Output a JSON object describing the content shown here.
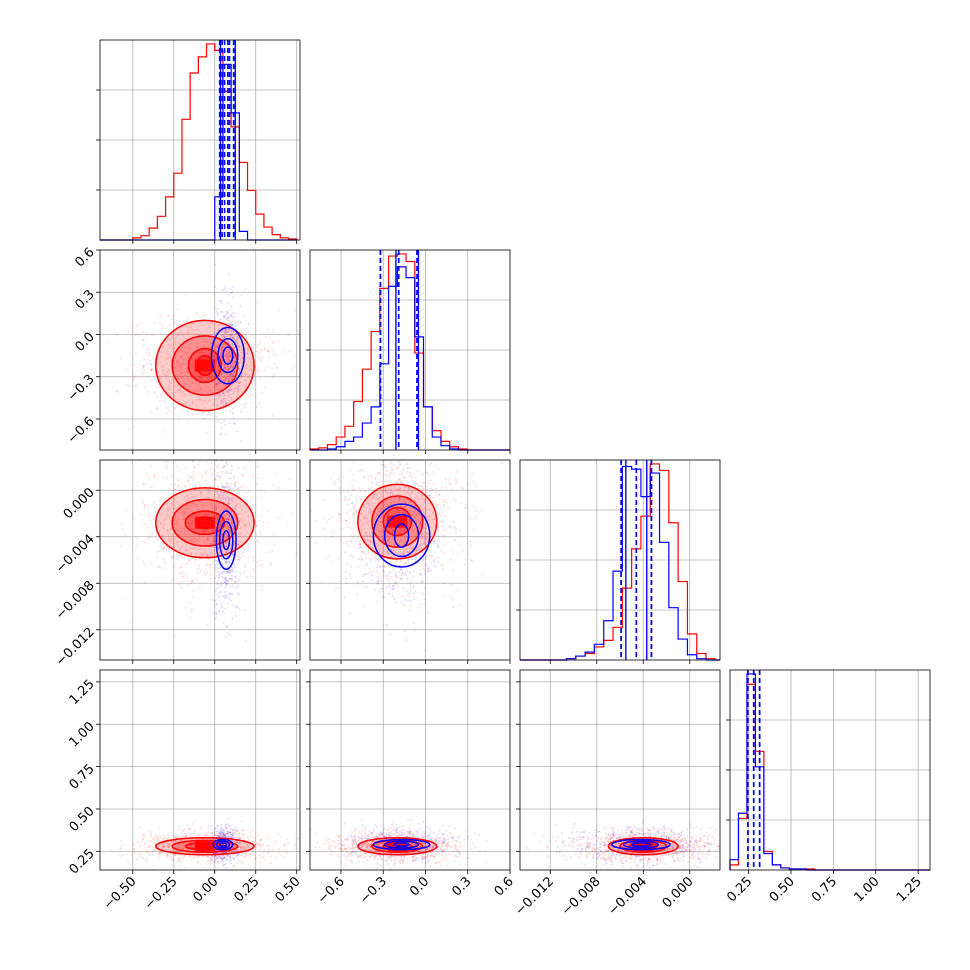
{
  "chart_data": {
    "type": "corner",
    "series": [
      {
        "name": "",
        "color": "#ff0000"
      },
      {
        "name": "",
        "color": "#0000ff"
      }
    ],
    "parameters": [
      {
        "range": [
          -0.7,
          0.52
        ],
        "ticks": [
          "-0.50",
          "-0.25",
          "0.00",
          "0.25",
          "0.50"
        ],
        "tick_values": [
          -0.5,
          -0.25,
          0,
          0.25,
          0.5
        ]
      },
      {
        "range": [
          -0.82,
          0.6
        ],
        "ticks": [
          "-0.6",
          "-0.3",
          "0.0",
          "0.3",
          "0.6"
        ],
        "tick_values": [
          -0.6,
          -0.3,
          0,
          0.3,
          0.6
        ]
      },
      {
        "range": [
          -0.0146,
          0.0026
        ],
        "ticks": [
          "-0.012",
          "-0.008",
          "-0.004",
          "0.000"
        ],
        "tick_values": [
          -0.012,
          -0.008,
          -0.004,
          0
        ]
      },
      {
        "range": [
          0.14,
          1.32
        ],
        "ticks": [
          "0.25",
          "0.50",
          "0.75",
          "1.00",
          "1.25"
        ],
        "tick_values": [
          0.25,
          0.5,
          0.75,
          1.0,
          1.25
        ]
      }
    ],
    "histograms": [
      {
        "bins": [
          -0.7,
          -0.65,
          -0.6,
          -0.55,
          -0.5,
          -0.45,
          -0.4,
          -0.35,
          -0.3,
          -0.25,
          -0.2,
          -0.15,
          -0.1,
          -0.05,
          0.0,
          0.05,
          0.1,
          0.15,
          0.2,
          0.25,
          0.3,
          0.35,
          0.4,
          0.45,
          0.5
        ],
        "series": [
          [
            0,
            0,
            0,
            0,
            2,
            4,
            11,
            22,
            40,
            62,
            112,
            155,
            170,
            182,
            176,
            138,
            105,
            72,
            46,
            24,
            12,
            5,
            2,
            1
          ],
          [
            0,
            0,
            0,
            0,
            0,
            0,
            0,
            0,
            0,
            0,
            0,
            0,
            0,
            0,
            40,
            163,
            118,
            8,
            0,
            0,
            0,
            0,
            0,
            0
          ]
        ],
        "quantiles": [
          [
            0.045,
            0.08,
            0.115
          ],
          [
            0.03,
            0.06,
            0.09
          ]
        ]
      },
      {
        "bins": [
          -0.82,
          -0.758,
          -0.696,
          -0.634,
          -0.572,
          -0.51,
          -0.448,
          -0.386,
          -0.324,
          -0.262,
          -0.2,
          -0.138,
          -0.076,
          -0.014,
          0.048,
          0.11,
          0.172,
          0.234,
          0.296,
          0.358,
          0.42,
          0.482,
          0.544,
          0.6
        ],
        "series": [
          [
            1,
            2,
            5,
            12,
            22,
            45,
            75,
            110,
            150,
            180,
            182,
            175,
            90,
            40,
            18,
            8,
            3,
            1,
            0,
            0,
            0,
            0,
            0
          ],
          [
            0,
            0,
            1,
            3,
            8,
            12,
            25,
            40,
            80,
            152,
            170,
            160,
            105,
            40,
            12,
            4,
            1,
            0,
            0,
            0,
            0,
            0,
            0
          ]
        ],
        "quantiles": [
          [
            -0.32,
            -0.19,
            -0.06
          ],
          [
            -0.32,
            -0.19,
            -0.06
          ]
        ]
      },
      {
        "bins": [
          -0.0146,
          -0.0138,
          -0.013,
          -0.0122,
          -0.0114,
          -0.0106,
          -0.0098,
          -0.009,
          -0.0082,
          -0.0074,
          -0.0066,
          -0.0058,
          -0.005,
          -0.0042,
          -0.0034,
          -0.0026,
          -0.0018,
          -0.001,
          -0.0002,
          0.0006,
          0.0014,
          0.0022,
          0.0026
        ],
        "series": [
          [
            0,
            0,
            0,
            0,
            0,
            1,
            3,
            5,
            10,
            15,
            25,
            55,
            85,
            110,
            150,
            145,
            105,
            60,
            20,
            5,
            1,
            0
          ],
          [
            0,
            0,
            0,
            0,
            0,
            1,
            3,
            6,
            12,
            30,
            68,
            148,
            146,
            125,
            143,
            90,
            40,
            16,
            4,
            1,
            0,
            0
          ]
        ],
        "quantiles": [
          [
            -0.0059,
            -0.0046,
            -0.0033
          ],
          [
            -0.0059,
            -0.0046,
            -0.0033
          ]
        ]
      },
      {
        "bins": [
          0.14,
          0.19,
          0.24,
          0.29,
          0.34,
          0.39,
          0.44,
          0.49,
          0.54,
          0.59,
          0.64,
          0.69,
          0.74,
          0.79,
          0.84,
          0.89,
          0.94,
          0.99,
          1.04,
          1.09,
          1.14,
          1.19,
          1.24,
          1.29,
          1.32
        ],
        "series": [
          [
            5,
            50,
            180,
            115,
            18,
            5,
            2,
            1,
            1,
            1,
            0,
            0,
            0,
            0,
            0,
            0,
            0,
            0,
            0,
            0,
            0,
            0,
            0,
            0
          ],
          [
            10,
            55,
            190,
            100,
            16,
            5,
            2,
            1,
            1,
            0,
            0,
            0,
            0,
            0,
            0,
            0,
            0,
            0,
            0,
            0,
            0,
            0,
            0,
            0
          ]
        ],
        "quantiles": [
          [
            0.245,
            0.28,
            0.315
          ],
          [
            0.245,
            0.28,
            0.315
          ]
        ]
      }
    ],
    "scatter": [
      {
        "x": 0,
        "y": 1,
        "centers": [
          [
            -0.06,
            -0.22
          ],
          [
            0.08,
            -0.15
          ]
        ],
        "sigma": [
          [
            0.16,
            0.13
          ],
          [
            0.035,
            0.16
          ]
        ],
        "contours": [
          [
            [
              0.05,
              0.07
            ],
            [
              0.1,
              0.12
            ],
            [
              0.2,
              0.21
            ],
            [
              0.3,
              0.32
            ]
          ],
          [
            [
              0.03,
              0.06
            ],
            [
              0.06,
              0.12
            ],
            [
              0.1,
              0.2
            ]
          ]
        ]
      },
      {
        "x": 0,
        "y": 2,
        "centers": [
          [
            -0.06,
            -0.0028
          ],
          [
            0.07,
            -0.0043
          ]
        ],
        "sigma": [
          [
            0.15,
            0.0022
          ],
          [
            0.03,
            0.0025
          ]
        ],
        "contours": [
          [
            [
              0.05,
              0.0005
            ],
            [
              0.12,
              0.001
            ],
            [
              0.2,
              0.002
            ],
            [
              0.3,
              0.003
            ]
          ],
          [
            [
              0.02,
              0.0008
            ],
            [
              0.04,
              0.0016
            ],
            [
              0.06,
              0.0025
            ]
          ]
        ]
      },
      {
        "x": 0,
        "y": 3,
        "centers": [
          [
            -0.06,
            0.28
          ],
          [
            0.05,
            0.29
          ]
        ],
        "sigma": [
          [
            0.16,
            0.035
          ],
          [
            0.035,
            0.04
          ]
        ],
        "contours": [
          [
            [
              0.05,
              0.01
            ],
            [
              0.12,
              0.02
            ],
            [
              0.2,
              0.035
            ],
            [
              0.3,
              0.05
            ]
          ],
          [
            [
              0.02,
              0.01
            ],
            [
              0.04,
              0.02
            ],
            [
              0.06,
              0.03
            ]
          ]
        ]
      },
      {
        "x": 1,
        "y": 2,
        "centers": [
          [
            -0.2,
            -0.0027
          ],
          [
            -0.17,
            -0.0039
          ]
        ],
        "sigma": [
          [
            0.17,
            0.0022
          ],
          [
            0.14,
            0.0025
          ]
        ],
        "contours": [
          [
            [
              0.03,
              0.0005
            ],
            [
              0.1,
              0.0012
            ],
            [
              0.18,
              0.0022
            ],
            [
              0.28,
              0.0032
            ]
          ],
          [
            [
              0.05,
              0.001
            ],
            [
              0.12,
              0.0018
            ],
            [
              0.2,
              0.0027
            ]
          ]
        ]
      },
      {
        "x": 1,
        "y": 3,
        "centers": [
          [
            -0.2,
            0.28
          ],
          [
            -0.17,
            0.29
          ]
        ],
        "sigma": [
          [
            0.17,
            0.035
          ],
          [
            0.14,
            0.04
          ]
        ],
        "contours": [
          [
            [
              0.04,
              0.01
            ],
            [
              0.1,
              0.02
            ],
            [
              0.18,
              0.035
            ],
            [
              0.28,
              0.05
            ]
          ],
          [
            [
              0.05,
              0.01
            ],
            [
              0.12,
              0.02
            ],
            [
              0.2,
              0.03
            ]
          ]
        ]
      },
      {
        "x": 2,
        "y": 3,
        "centers": [
          [
            -0.004,
            0.28
          ],
          [
            -0.0042,
            0.29
          ]
        ],
        "sigma": [
          [
            0.0022,
            0.035
          ],
          [
            0.0022,
            0.04
          ]
        ],
        "contours": [
          [
            [
              0.0006,
              0.01
            ],
            [
              0.0012,
              0.02
            ],
            [
              0.002,
              0.035
            ],
            [
              0.003,
              0.05
            ]
          ],
          [
            [
              0.0008,
              0.01
            ],
            [
              0.0015,
              0.02
            ],
            [
              0.0025,
              0.03
            ]
          ]
        ]
      }
    ],
    "grid": true,
    "legend": "none"
  }
}
